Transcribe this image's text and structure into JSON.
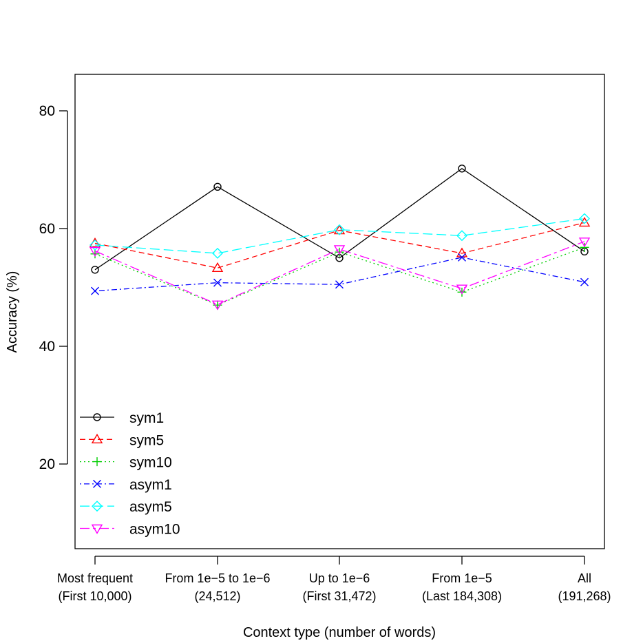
{
  "chart_data": {
    "type": "line",
    "title": "",
    "xlabel": "Context type (number of words)",
    "ylabel": "Accuracy (%)",
    "ylim": [
      5,
      86
    ],
    "yticks": [
      20,
      40,
      60,
      80
    ],
    "ytick_labels": [
      "20",
      "40",
      "60",
      "80"
    ],
    "categories": [
      {
        "line1": "Most frequent",
        "line2": "(First 10,000)"
      },
      {
        "line1": "From 1e−5 to 1e−6",
        "line2": "(24,512)"
      },
      {
        "line1": "Up to 1e−6",
        "line2": "(First 31,472)"
      },
      {
        "line1": "From 1e−5",
        "line2": "(Last 184,308)"
      },
      {
        "line1": "All",
        "line2": "(191,268)"
      }
    ],
    "legend_position": "bottom-left",
    "grid": false,
    "series": [
      {
        "name": "sym1",
        "color": "#000000",
        "dash": "",
        "marker": "circle",
        "values": [
          53.0,
          67.1,
          55.0,
          70.2,
          56.1
        ]
      },
      {
        "name": "sym5",
        "color": "#ff0000",
        "dash": "8 5",
        "marker": "triangle-up",
        "values": [
          57.5,
          53.3,
          59.7,
          55.8,
          61.0
        ]
      },
      {
        "name": "sym10",
        "color": "#00cd00",
        "dash": "2 4",
        "marker": "plus",
        "values": [
          55.7,
          47.0,
          56.0,
          49.2,
          56.8
        ]
      },
      {
        "name": "asym1",
        "color": "#0000ff",
        "dash": "2 4 8 4",
        "marker": "cross",
        "values": [
          49.4,
          50.8,
          50.5,
          55.1,
          50.9
        ]
      },
      {
        "name": "asym5",
        "color": "#00ffff",
        "dash": "14 6",
        "marker": "diamond",
        "values": [
          57.2,
          55.8,
          59.8,
          58.8,
          61.7
        ]
      },
      {
        "name": "asym10",
        "color": "#ff00ff",
        "dash": "14 5 4 5",
        "marker": "triangle-down",
        "values": [
          56.2,
          47.1,
          56.5,
          49.8,
          57.8
        ]
      }
    ]
  }
}
